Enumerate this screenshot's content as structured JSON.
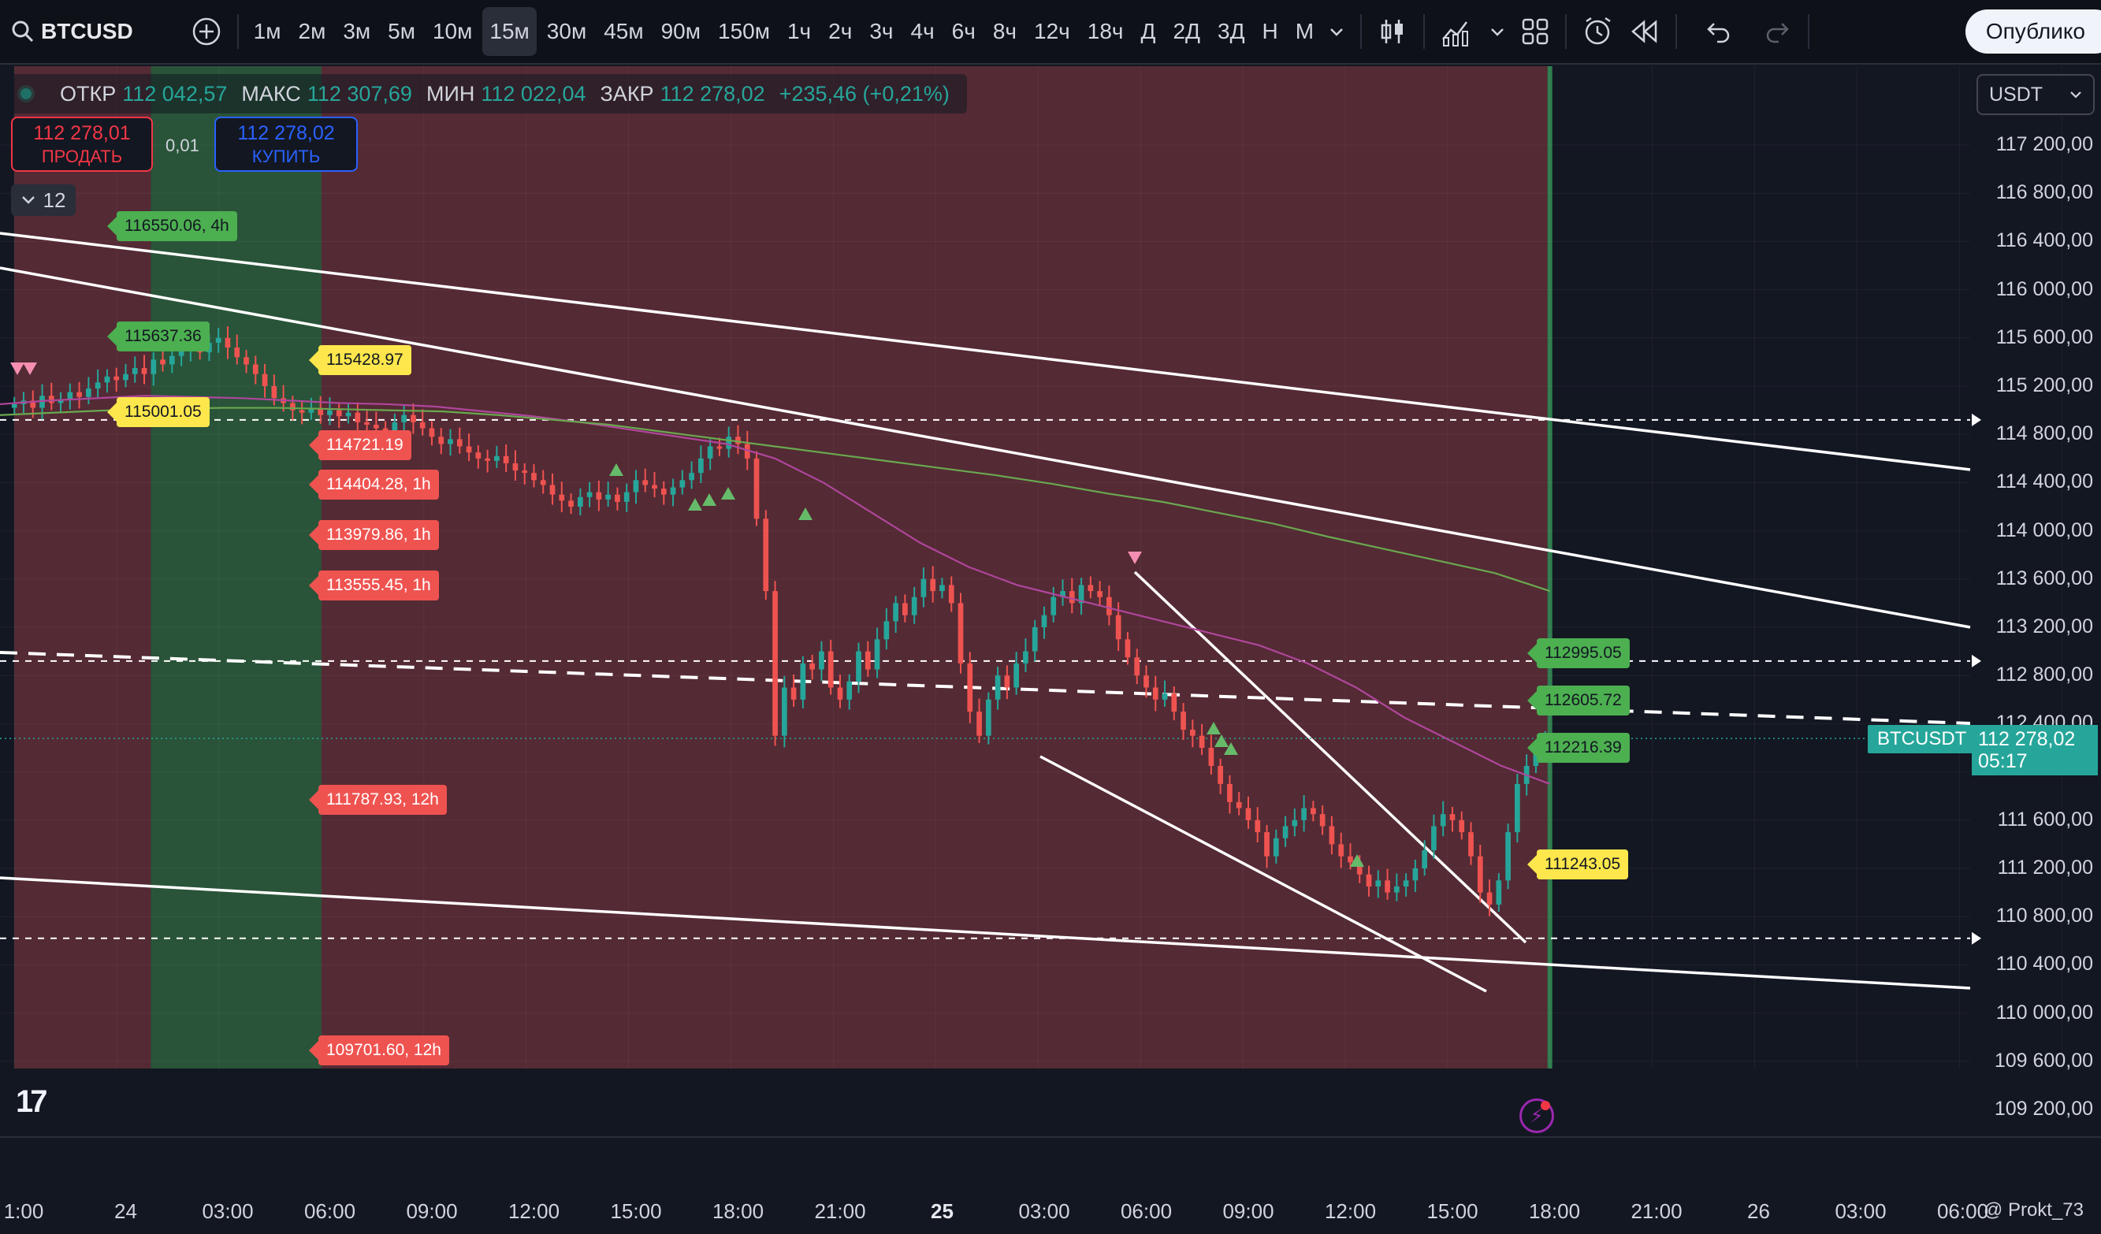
{
  "toolbar": {
    "symbol": "BTCUSD",
    "intervals": [
      "1м",
      "2м",
      "3м",
      "5м",
      "10м",
      "15м",
      "30м",
      "45м",
      "90м",
      "150м",
      "1ч",
      "2ч",
      "3ч",
      "4ч",
      "6ч",
      "8ч",
      "12ч",
      "18ч",
      "Д",
      "2Д",
      "3Д",
      "Н",
      "М"
    ],
    "active_interval": "15м",
    "publish_label": "Опублико"
  },
  "ohlc": {
    "open_label": "ОТКР",
    "open": "112 042,57",
    "high_label": "МАКС",
    "high": "112 307,69",
    "low_label": "МИН",
    "low": "112 022,04",
    "close_label": "ЗАКР",
    "close": "112 278,02",
    "change": "+235,46 (+0,21%)"
  },
  "trade": {
    "sell_price": "112 278,01",
    "sell_label": "ПРОДАТЬ",
    "buy_price": "112 278,02",
    "buy_label": "КУПИТЬ",
    "spread": "0,01"
  },
  "indicators_count": "12",
  "currency": "USDT",
  "price_axis": [
    "117 200,00",
    "116 800,00",
    "116 400,00",
    "116 000,00",
    "115 600,00",
    "115 200,00",
    "114 800,00",
    "114 400,00",
    "114 000,00",
    "113 600,00",
    "113 200,00",
    "112 800,00",
    "112 400,00",
    "111 600,00",
    "111 200,00",
    "110 800,00",
    "110 400,00",
    "110 000,00",
    "109 600,00",
    "109 200,00"
  ],
  "time_axis": [
    {
      "label": "1:00"
    },
    {
      "label": "24"
    },
    {
      "label": "03:00"
    },
    {
      "label": "06:00"
    },
    {
      "label": "09:00"
    },
    {
      "label": "12:00"
    },
    {
      "label": "15:00"
    },
    {
      "label": "18:00"
    },
    {
      "label": "21:00"
    },
    {
      "label": "25",
      "bold": true
    },
    {
      "label": "03:00"
    },
    {
      "label": "06:00"
    },
    {
      "label": "09:00"
    },
    {
      "label": "12:00"
    },
    {
      "label": "15:00"
    },
    {
      "label": "18:00"
    },
    {
      "label": "21:00"
    },
    {
      "label": "26"
    },
    {
      "label": "03:00"
    },
    {
      "label": "06:00"
    }
  ],
  "current": {
    "symbol": "BTCUSDT",
    "price": "112 278,02",
    "countdown": "05:17"
  },
  "level_tags": {
    "left_yellow": [
      "115428.97",
      "115001.05"
    ],
    "left_red": [
      "114721.19",
      "114404.28, 1h",
      "113979.86, 1h",
      "113555.45, 1h",
      "111787.93, 12h",
      "109701.60, 12h"
    ],
    "left_green": [
      "116550.06, 4h",
      "115637.36"
    ],
    "right_green": [
      "112995.05",
      "112605.72",
      "112216.39"
    ],
    "right_yellow": [
      "111243.05"
    ]
  },
  "watermark": "@ Prokt_73",
  "colors": {
    "bg": "#131722",
    "bear_zone": "#5a2d36",
    "bull_zone": "#2b5a3c",
    "up": "#26a69a",
    "down": "#ef5350",
    "ma_magenta": "#b0469c",
    "ma_green": "#6aa84f"
  },
  "chart_data": {
    "type": "candlestick",
    "symbol": "BTCUSD",
    "interval": "15м",
    "ylim": [
      109000,
      117400
    ],
    "x_start": "23 21:00",
    "x_step_hours": 0.25,
    "closes": [
      115050,
      115080,
      115020,
      115120,
      115060,
      115090,
      115150,
      115110,
      115180,
      115230,
      115280,
      115250,
      115300,
      115350,
      115300,
      115420,
      115380,
      115450,
      115500,
      115540,
      115480,
      115560,
      115600,
      115520,
      115440,
      115380,
      115300,
      115200,
      115100,
      115060,
      115000,
      114980,
      115020,
      114960,
      115000,
      114950,
      114980,
      114900,
      114880,
      114850,
      114800,
      114900,
      114960,
      114900,
      114850,
      114780,
      114720,
      114760,
      114700,
      114650,
      114600,
      114580,
      114620,
      114560,
      114500,
      114480,
      114420,
      114380,
      114300,
      114250,
      114200,
      114280,
      114320,
      114260,
      114300,
      114240,
      114320,
      114420,
      114380,
      114350,
      114300,
      114360,
      114420,
      114480,
      114600,
      114700,
      114680,
      114780,
      114720,
      114600,
      114100,
      113500,
      112300,
      112700,
      112600,
      112900,
      112850,
      113000,
      112700,
      112600,
      112750,
      113000,
      112850,
      113100,
      113250,
      113400,
      113300,
      113450,
      113600,
      113500,
      113550,
      113400,
      112900,
      112500,
      112300,
      112600,
      112800,
      112700,
      112900,
      113000,
      113200,
      113300,
      113450,
      113500,
      113400,
      113550,
      113500,
      113450,
      113300,
      113100,
      112950,
      112800,
      112700,
      112600,
      112650,
      112500,
      112350,
      112300,
      112200,
      112050,
      111900,
      111750,
      111700,
      111600,
      111500,
      111300,
      111450,
      111550,
      111600,
      111700,
      111650,
      111550,
      111400,
      111300,
      111250,
      111150,
      111050,
      111100,
      111000,
      111050,
      111100,
      111200,
      111350,
      111550,
      111650,
      111600,
      111500,
      111300,
      111000,
      110900,
      111100,
      111500,
      111900,
      112050,
      112150,
      112278
    ],
    "moving_averages": [
      {
        "color": "#b0469c",
        "values": [
          115050,
          115080,
          115100,
          115120,
          115110,
          115100,
          115080,
          115060,
          115050,
          115030,
          114990,
          114950,
          114900,
          114840,
          114780,
          114720,
          114600,
          114400,
          114150,
          113900,
          113700,
          113550,
          113450,
          113350,
          113250,
          113150,
          113050,
          112900,
          112700,
          112450,
          112250,
          112050,
          111900
        ]
      },
      {
        "color": "#6aa84f",
        "values": [
          114960,
          114980,
          115000,
          115010,
          115020,
          115020,
          115010,
          115000,
          114990,
          114960,
          114920,
          114880,
          114820,
          114760,
          114700,
          114640,
          114580,
          114520,
          114460,
          114390,
          114310,
          114240,
          114150,
          114060,
          113950,
          113850,
          113750,
          113650,
          113500
        ]
      }
    ],
    "horizontal_levels": [
      114920,
      112920,
      110620
    ],
    "zones": [
      {
        "from": "23 21:00",
        "to": "24 01:00",
        "kind": "bear"
      },
      {
        "from": "24 01:00",
        "to": "24 06:00",
        "kind": "bull"
      },
      {
        "from": "24 06:00",
        "to": "25 18:00",
        "kind": "bear"
      }
    ]
  }
}
